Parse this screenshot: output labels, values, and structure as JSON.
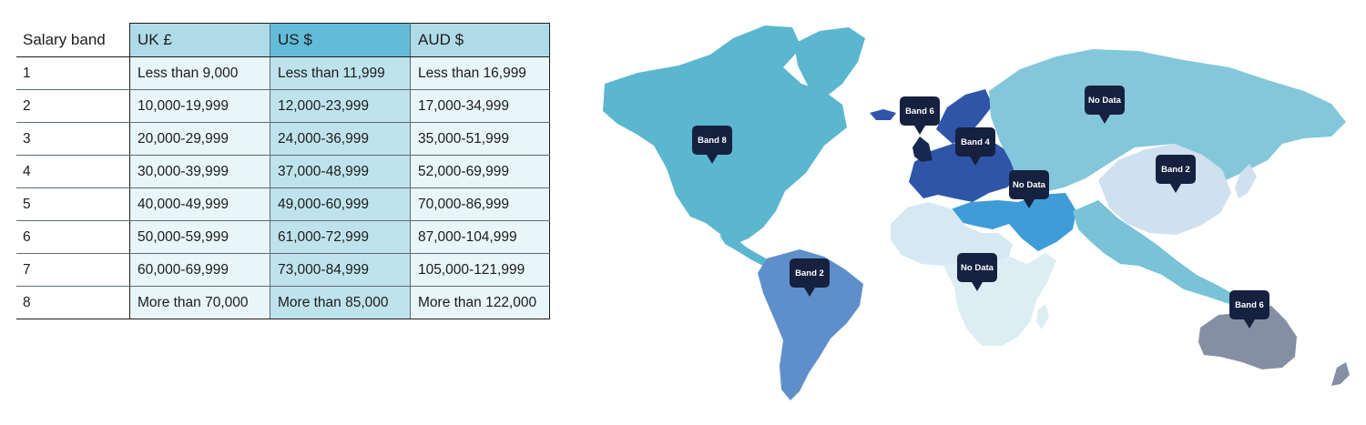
{
  "table": {
    "headers": [
      "Salary band",
      "UK £",
      "US $",
      "AUD $"
    ],
    "rows": [
      {
        "band": "1",
        "uk": "Less than 9,000",
        "us": "Less than 11,999",
        "aud": "Less than 16,999"
      },
      {
        "band": "2",
        "uk": "10,000-19,999",
        "us": "12,000-23,999",
        "aud": "17,000-34,999"
      },
      {
        "band": "3",
        "uk": "20,000-29,999",
        "us": "24,000-36,999",
        "aud": "35,000-51,999"
      },
      {
        "band": "4",
        "uk": "30,000-39,999",
        "us": "37,000-48,999",
        "aud": "52,000-69,999"
      },
      {
        "band": "5",
        "uk": "40,000-49,999",
        "us": "49,000-60,999",
        "aud": "70,000-86,999"
      },
      {
        "band": "6",
        "uk": "50,000-59,999",
        "us": "61,000-72,999",
        "aud": "87,000-104,999"
      },
      {
        "band": "7",
        "uk": "60,000-69,999",
        "us": "73,000-84,999",
        "aud": "105,000-121,999"
      },
      {
        "band": "8",
        "uk": "More than 70,000",
        "us": "More than 85,000",
        "aud": "More than 122,000"
      }
    ]
  },
  "map": {
    "pins": [
      {
        "id": "north-america",
        "label": "Band 8"
      },
      {
        "id": "uk",
        "label": "Band 6"
      },
      {
        "id": "europe",
        "label": "Band 4"
      },
      {
        "id": "russia",
        "label": "No Data"
      },
      {
        "id": "middle-east",
        "label": "No Data"
      },
      {
        "id": "china",
        "label": "Band 2"
      },
      {
        "id": "south-america",
        "label": "Band 2"
      },
      {
        "id": "africa",
        "label": "No Data"
      },
      {
        "id": "australia",
        "label": "Band 6"
      }
    ],
    "colors": {
      "north_america": "#5bb6d0",
      "greenland": "#5bb6d0",
      "south_america": "#5f8fca",
      "uk": "#17284f",
      "europe": "#2f55a8",
      "russia_asia": "#84c7db",
      "china": "#cfe0ef",
      "middle_east": "#3f9cd8",
      "north_africa": "#d6e9f2",
      "africa": "#dcedf4",
      "south_asia": "#79c2d8",
      "australia": "#858fa4",
      "pin": "#15213f"
    }
  }
}
